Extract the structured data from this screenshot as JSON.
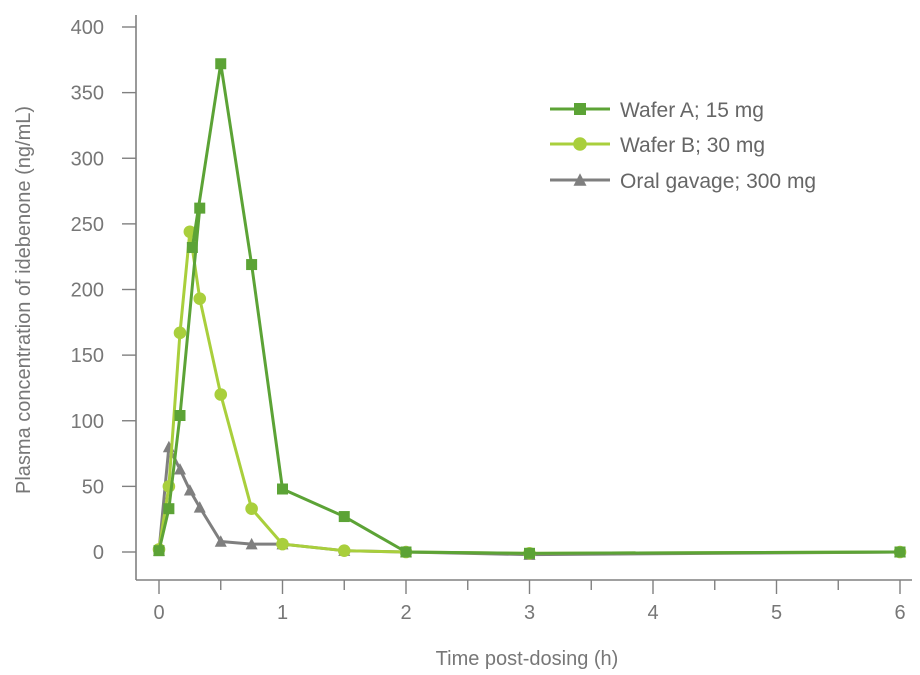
{
  "chart_data": {
    "type": "line",
    "xlabel": "Time post-dosing (h)",
    "ylabel": "Plasma concentration of idebenone (ng/mL)",
    "xlim": [
      0,
      6
    ],
    "ylim": [
      0,
      400
    ],
    "xticks": [
      0,
      1,
      2,
      3,
      4,
      5,
      6
    ],
    "yticks": [
      0,
      50,
      100,
      150,
      200,
      250,
      300,
      350,
      400
    ],
    "xtick_labels": [
      "0",
      "1",
      "2",
      "3",
      "4",
      "5",
      "6"
    ],
    "ytick_labels": [
      "0",
      "50",
      "100",
      "150",
      "200",
      "250",
      "300",
      "350",
      "400"
    ],
    "grid": false,
    "legend_position": "top-right",
    "series": [
      {
        "name": "Wafer A; 15 mg",
        "marker": "square",
        "color": "#5ca336",
        "x": [
          0,
          0.08,
          0.17,
          0.33,
          0.27,
          0.5,
          0.75,
          1,
          1.5,
          2,
          3,
          6
        ],
        "y": [
          1,
          33,
          104,
          262,
          232,
          372,
          219,
          48,
          27,
          0,
          -1,
          0
        ]
      },
      {
        "name": "Wafer B; 30 mg",
        "marker": "circle",
        "color": "#a9cf3c",
        "x": [
          0,
          0.08,
          0.17,
          0.25,
          0.33,
          0.5,
          0.75,
          1,
          1.5,
          2,
          3,
          6
        ],
        "y": [
          2,
          50,
          167,
          244,
          193,
          120,
          33,
          6,
          1,
          0,
          -1,
          0
        ]
      },
      {
        "name": "Oral gavage; 300 mg",
        "marker": "triangle",
        "color": "#7f7f7f",
        "x": [
          0,
          0.08,
          0.17,
          0.25,
          0.33,
          0.5,
          0.75,
          1,
          1.5,
          2,
          3,
          6
        ],
        "y": [
          1,
          80,
          63,
          47,
          34,
          8,
          6,
          6,
          1,
          0,
          -2,
          0
        ]
      }
    ]
  }
}
